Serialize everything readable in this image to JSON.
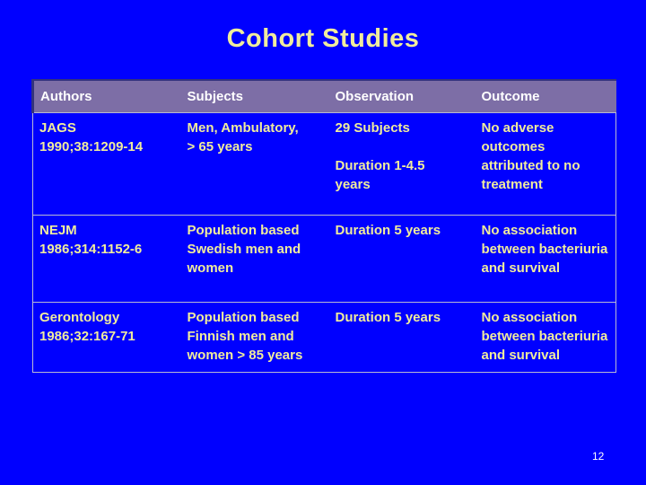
{
  "slide": {
    "title": "Cohort Studies",
    "page_number": "12",
    "colors": {
      "background": "#0000ff",
      "title_text": "#f0ec9d",
      "body_text": "#f0ec9d",
      "header_bg": "#7d6ea6",
      "header_text": "#ffffff",
      "header_accent": "#32327e",
      "border": "#b9b9d2"
    }
  },
  "table": {
    "columns": [
      "Authors",
      "Subjects",
      "Observation",
      "Outcome"
    ],
    "rows": [
      {
        "authors": "JAGS\n1990;38:1209-14",
        "subjects": "Men, Ambulatory,\n> 65 years",
        "observation": "29 Subjects\n\nDuration 1-4.5\nyears",
        "outcome": "No adverse\noutcomes\nattributed to no\ntreatment"
      },
      {
        "authors": "NEJM\n1986;314:1152-6",
        "subjects": "Population based\nSwedish men and\nwomen",
        "observation": "Duration 5 years",
        "outcome": "No association\nbetween bacteriuria\nand survival"
      },
      {
        "authors": "Gerontology\n1986;32:167-71",
        "subjects": "Population based\nFinnish men and\nwomen > 85 years",
        "observation": "Duration 5 years",
        "outcome": "No association\nbetween bacteriuria\nand survival"
      }
    ]
  }
}
